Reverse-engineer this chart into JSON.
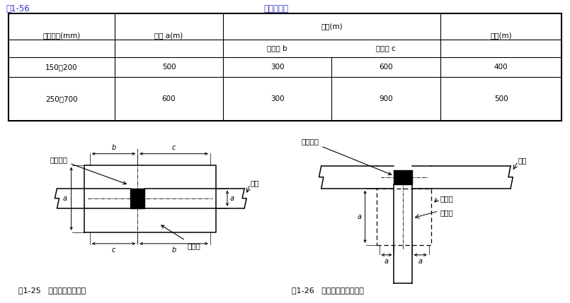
{
  "table_title_left": "表1-56",
  "table_title_center": "工作坑尺寸",
  "col_headers": [
    "公称直径(mm)",
    "宽度 a(m)",
    "长度(m)",
    "深度(m)"
  ],
  "sub_headers": [
    "焊口前 b",
    "焊口后 c"
  ],
  "rows": [
    [
      "150～200",
      "500",
      "300",
      "600",
      "400"
    ],
    [
      "250～700",
      "600",
      "300",
      "900",
      "500"
    ]
  ],
  "fig25_caption": "图1-25   直管工作坑平面图",
  "fig26_caption": "图1-26   分支管工作坑平面图",
  "label_guding_weld": "固定焊口",
  "label_steel_pipe": "钢管",
  "label_work_pit": "工作坑",
  "label_guding_weld2": "固定焊口",
  "label_dry_pipe": "干管",
  "label_work_pit2": "工作坑",
  "label_branch_pipe": "分支管",
  "blue_color": "#3333CC",
  "line_color": "#000000",
  "bg_color": "#ffffff"
}
